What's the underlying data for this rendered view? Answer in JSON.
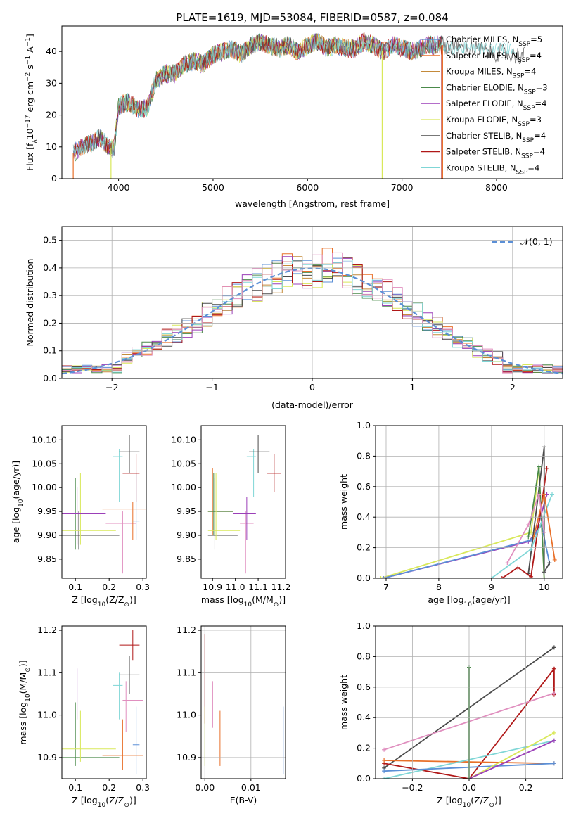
{
  "figure_title": "PLATE=1619, MJD=53084, FIBERID=0587, z=0.084",
  "colors": {
    "c0": "#5b8fd6",
    "c1": "#e8702a",
    "c2": "#c48a3a",
    "c3": "#4a8a4a",
    "c4": "#9b3fb8",
    "c5": "#d9e85a",
    "c6": "#4a4a4a",
    "c7": "#b01818",
    "c8": "#7fd6d6",
    "c9": "#e08fbf",
    "normal": "#5b8fd6"
  },
  "chart_data": [
    {
      "type": "line",
      "title": "PLATE=1619, MJD=53084, FIBERID=0587, z=0.084",
      "xlabel": "wavelength [Angstrom, rest frame]",
      "ylabel": "Flux [f",
      "ylabel_sub": "λ",
      "ylabel_rest": "10",
      "ylabel_exp": "−17",
      "ylabel_tail": " erg cm",
      "ylabel_exp2": "−2",
      "ylabel_tail2": " s",
      "ylabel_exp3": "−1",
      "ylabel_tail3": " A",
      "ylabel_exp4": "−1",
      "ylabel_end": "]",
      "xlim": [
        3400,
        8700
      ],
      "ylim": [
        0,
        48
      ],
      "xticks": [
        4000,
        5000,
        6000,
        7000,
        8000
      ],
      "yticks": [
        0,
        10,
        20,
        30,
        40
      ],
      "legend_position": "top-right",
      "spectrum_anchor": {
        "wavelength": [
          3520,
          3600,
          3700,
          3800,
          3900,
          3950,
          4000,
          4100,
          4200,
          4300,
          4400,
          4500,
          4600,
          4700,
          4800,
          4900,
          5000,
          5100,
          5200,
          5300,
          5400,
          5500,
          5600,
          5700,
          5800,
          5900,
          6000,
          6100,
          6200,
          6300,
          6400,
          6500,
          6600,
          6700,
          6800,
          6900,
          7000,
          7100,
          7200,
          7300,
          7400
        ],
        "flux": [
          8,
          10,
          11,
          13,
          10,
          9,
          23,
          24,
          22,
          22,
          31,
          33,
          33,
          36,
          37,
          36,
          39,
          40,
          41,
          39,
          42,
          43,
          42,
          41,
          42,
          40,
          42,
          43,
          41,
          42,
          41,
          41,
          43,
          42,
          40,
          42,
          41,
          40,
          41,
          42,
          42
        ]
      },
      "series": [
        {
          "name": "Chabrier MILES, N",
          "sub": "SSP",
          "tail": "=5",
          "color": "c0"
        },
        {
          "name": "Salpeter MILES, N",
          "sub": "SSP",
          "tail": "=4",
          "color": "c1"
        },
        {
          "name": "Kroupa MILES, N",
          "sub": "SSP",
          "tail": "=4",
          "color": "c2"
        },
        {
          "name": "Chabrier ELODIE, N",
          "sub": "SSP",
          "tail": "=3",
          "color": "c3"
        },
        {
          "name": "Salpeter ELODIE, N",
          "sub": "SSP",
          "tail": "=4",
          "color": "c4"
        },
        {
          "name": "Kroupa ELODIE, N",
          "sub": "SSP",
          "tail": "=3",
          "color": "c5"
        },
        {
          "name": "Chabrier STELIB, N",
          "sub": "SSP",
          "tail": "=4",
          "color": "c6"
        },
        {
          "name": "Salpeter STELIB, N",
          "sub": "SSP",
          "tail": "=4",
          "color": "c7"
        },
        {
          "name": "Kroupa STELIB, N",
          "sub": "SSP",
          "tail": "=4",
          "color": "c8"
        }
      ]
    },
    {
      "type": "line",
      "xlabel": "(data-model)/error",
      "ylabel": "Normed distribution",
      "xlim": [
        -2.5,
        2.5
      ],
      "ylim": [
        0,
        0.55
      ],
      "xticks": [
        -2,
        -1,
        0,
        1,
        2
      ],
      "yticks": [
        0.0,
        0.1,
        0.2,
        0.3,
        0.4,
        0.5
      ],
      "grid": true,
      "legend_position": "top-right",
      "legend_label": "𝒩(0, 1)",
      "histogram_bin_width": 0.1
    },
    {
      "type": "scatter",
      "xlabel": "Z [log",
      "xlabel_sub": "10",
      "xlabel_tail": "(Z/Z",
      "xlabel_sub2": "⊙",
      "xlabel_end": ")]",
      "ylabel": "age  [log",
      "ylabel_sub": "10",
      "ylabel_tail": "(age/yr)]",
      "xlim": [
        0.06,
        0.31
      ],
      "ylim": [
        9.81,
        10.13
      ],
      "xticks": [
        "0.1",
        "0.2",
        "0.3"
      ],
      "yticks": [
        "9.85",
        "9.90",
        "9.95",
        "10.00",
        "10.05",
        "10.10"
      ],
      "points": [
        {
          "x": 0.1,
          "y": 9.9,
          "xerr": [
            0.07,
            0.18
          ],
          "yerr": [
            9.87,
            10.02
          ],
          "color": "c3"
        },
        {
          "x": 0.11,
          "y": 9.9,
          "xerr": [
            0.06,
            0.23
          ],
          "yerr": [
            9.87,
            9.95
          ],
          "color": "c6"
        },
        {
          "x": 0.115,
          "y": 9.91,
          "xerr": [
            0.06,
            0.22
          ],
          "yerr": [
            9.88,
            10.03
          ],
          "color": "c5"
        },
        {
          "x": 0.105,
          "y": 9.945,
          "xerr": [
            0.06,
            0.19
          ],
          "yerr": [
            9.88,
            10.0
          ],
          "color": "c4"
        },
        {
          "x": 0.24,
          "y": 9.925,
          "xerr": [
            0.19,
            0.28
          ],
          "yerr": [
            9.82,
            9.95
          ],
          "color": "c9"
        },
        {
          "x": 0.27,
          "y": 9.955,
          "xerr": [
            0.18,
            0.31
          ],
          "yerr": [
            9.89,
            9.97
          ],
          "color": "c1"
        },
        {
          "x": 0.28,
          "y": 9.93,
          "xerr": [
            0.27,
            0.29
          ],
          "yerr": [
            9.89,
            10.03
          ],
          "color": "c0"
        },
        {
          "x": 0.28,
          "y": 10.03,
          "xerr": [
            0.24,
            0.29
          ],
          "yerr": [
            9.97,
            10.07
          ],
          "color": "c7"
        },
        {
          "x": 0.23,
          "y": 10.065,
          "xerr": [
            0.21,
            0.24
          ],
          "yerr": [
            9.97,
            10.08
          ],
          "color": "c8"
        },
        {
          "x": 0.26,
          "y": 10.075,
          "xerr": [
            0.23,
            0.29
          ],
          "yerr": [
            10.03,
            10.11
          ],
          "color": "c6"
        }
      ]
    },
    {
      "type": "scatter",
      "xlabel": "mass [log",
      "xlabel_sub": "10",
      "xlabel_tail": "(M/M",
      "xlabel_sub2": "⊙",
      "xlabel_end": ")]",
      "xlim": [
        10.85,
        11.22
      ],
      "ylim": [
        9.81,
        10.13
      ],
      "xticks": [
        "10.9",
        "11.0",
        "11.1",
        "11.2"
      ],
      "yticks": [
        "9.85",
        "9.90",
        "9.95",
        "10.00",
        "10.05",
        "10.10"
      ],
      "points": [
        {
          "x": 10.9,
          "y": 9.95,
          "xerr": [
            10.88,
            10.99
          ],
          "yerr": [
            9.9,
            10.04
          ],
          "color": "c1"
        },
        {
          "x": 10.905,
          "y": 9.95,
          "xerr": [
            10.88,
            10.99
          ],
          "yerr": [
            9.9,
            10.03
          ],
          "color": "c3"
        },
        {
          "x": 10.91,
          "y": 9.9,
          "xerr": [
            10.88,
            11.01
          ],
          "yerr": [
            9.87,
            10.02
          ],
          "color": "c6"
        },
        {
          "x": 10.915,
          "y": 9.91,
          "xerr": [
            10.88,
            11.02
          ],
          "yerr": [
            9.89,
            10.03
          ],
          "color": "c5"
        },
        {
          "x": 11.045,
          "y": 9.925,
          "xerr": [
            11.02,
            11.08
          ],
          "yerr": [
            9.82,
            9.95
          ],
          "color": "c9"
        },
        {
          "x": 11.05,
          "y": 9.945,
          "xerr": [
            10.99,
            11.09
          ],
          "yerr": [
            9.89,
            9.98
          ],
          "color": "c4"
        },
        {
          "x": 11.08,
          "y": 10.065,
          "xerr": [
            11.05,
            11.09
          ],
          "yerr": [
            9.98,
            10.08
          ],
          "color": "c8"
        },
        {
          "x": 11.1,
          "y": 10.075,
          "xerr": [
            11.06,
            11.15
          ],
          "yerr": [
            10.03,
            10.11
          ],
          "color": "c6"
        },
        {
          "x": 11.17,
          "y": 10.03,
          "xerr": [
            11.14,
            11.2
          ],
          "yerr": [
            9.99,
            10.07
          ],
          "color": "c7"
        }
      ]
    },
    {
      "type": "line",
      "xlabel": "age  [log",
      "xlabel_sub": "10",
      "xlabel_tail": "(age/yr)]",
      "ylabel": "mass weight",
      "xlim": [
        6.8,
        10.35
      ],
      "ylim": [
        0,
        1.0
      ],
      "xticks": [
        "7",
        "8",
        "9",
        "10"
      ],
      "yticks": [
        "0.0",
        "0.2",
        "0.4",
        "0.6",
        "0.8",
        "1.0"
      ],
      "grid": true,
      "series": [
        {
          "color": "c5",
          "x": [
            6.9,
            9.75,
            9.9,
            10.0
          ],
          "y": [
            0.0,
            0.3,
            0.72,
            0.0
          ]
        },
        {
          "color": "c4",
          "x": [
            6.95,
            9.7,
            9.85,
            10.05
          ],
          "y": [
            0.0,
            0.24,
            0.3,
            0.55
          ]
        },
        {
          "color": "c0",
          "x": [
            6.95,
            9.75,
            9.95,
            10.1
          ],
          "y": [
            0.0,
            0.25,
            0.35,
            0.1
          ]
        },
        {
          "color": "c3",
          "x": [
            9.7,
            9.9,
            10.0
          ],
          "y": [
            0.27,
            0.73,
            0.0
          ]
        },
        {
          "color": "c6",
          "x": [
            9.7,
            10.0,
            10.0,
            10.1
          ],
          "y": [
            0.03,
            0.86,
            0.04,
            0.1
          ]
        },
        {
          "color": "c7",
          "x": [
            9.2,
            9.5,
            9.75,
            10.05
          ],
          "y": [
            0.0,
            0.07,
            0.01,
            0.72
          ]
        },
        {
          "color": "c8",
          "x": [
            9.0,
            9.75,
            10.15
          ],
          "y": [
            0.0,
            0.19,
            0.55
          ]
        },
        {
          "color": "c1",
          "x": [
            9.8,
            10.0,
            10.2
          ],
          "y": [
            0.27,
            0.55,
            0.12
          ]
        },
        {
          "color": "c9",
          "x": [
            9.3,
            9.7,
            9.9,
            10.0
          ],
          "y": [
            0.1,
            0.35,
            0.55,
            0.3
          ]
        }
      ]
    },
    {
      "type": "scatter",
      "xlabel": "Z [log",
      "xlabel_sub": "10",
      "xlabel_tail": "(Z/Z",
      "xlabel_sub2": "⊙",
      "xlabel_end": ")]",
      "ylabel": "mass [log",
      "ylabel_sub": "10",
      "ylabel_tail": "(M/M",
      "ylabel_sub2": "⊙",
      "ylabel_end": ")]",
      "xlim": [
        0.06,
        0.31
      ],
      "ylim": [
        10.85,
        11.21
      ],
      "xticks": [
        "0.1",
        "0.2",
        "0.3"
      ],
      "yticks": [
        "10.9",
        "11.0",
        "11.1",
        "11.2"
      ],
      "points": [
        {
          "x": 0.1,
          "y": 10.9,
          "xerr": [
            0.06,
            0.23
          ],
          "yerr": [
            10.88,
            11.03
          ],
          "color": "c3"
        },
        {
          "x": 0.115,
          "y": 10.92,
          "xerr": [
            0.06,
            0.22
          ],
          "yerr": [
            10.89,
            11.01
          ],
          "color": "c5"
        },
        {
          "x": 0.105,
          "y": 11.045,
          "xerr": [
            0.06,
            0.19
          ],
          "yerr": [
            10.99,
            11.11
          ],
          "color": "c4"
        },
        {
          "x": 0.24,
          "y": 10.905,
          "xerr": [
            0.18,
            0.3
          ],
          "yerr": [
            10.87,
            10.99
          ],
          "color": "c1"
        },
        {
          "x": 0.25,
          "y": 11.035,
          "xerr": [
            0.24,
            0.3
          ],
          "yerr": [
            10.96,
            11.08
          ],
          "color": "c9"
        },
        {
          "x": 0.28,
          "y": 10.93,
          "xerr": [
            0.27,
            0.29
          ],
          "yerr": [
            10.86,
            11.02
          ],
          "color": "c0"
        },
        {
          "x": 0.23,
          "y": 11.07,
          "xerr": [
            0.21,
            0.24
          ],
          "yerr": [
            10.99,
            11.1
          ],
          "color": "c8"
        },
        {
          "x": 0.26,
          "y": 11.095,
          "xerr": [
            0.23,
            0.29
          ],
          "yerr": [
            11.05,
            11.14
          ],
          "color": "c6"
        },
        {
          "x": 0.27,
          "y": 11.165,
          "xerr": [
            0.23,
            0.29
          ],
          "yerr": [
            11.13,
            11.2
          ],
          "color": "c7"
        }
      ]
    },
    {
      "type": "scatter",
      "xlabel": "E(B-V)",
      "xlim": [
        -0.0008,
        0.0175
      ],
      "ylim": [
        10.85,
        11.21
      ],
      "xticks": [
        "0.00",
        "0.01"
      ],
      "yticks": [
        "10.9",
        "11.0",
        "11.1",
        "11.2"
      ],
      "grid": true,
      "points": [
        {
          "x": 0.0,
          "y": 11.05,
          "yerr": [
            10.98,
            11.19
          ],
          "color": "c7"
        },
        {
          "x": 0.0,
          "y": 11.0,
          "yerr": [
            10.88,
            11.02
          ],
          "color": "c5"
        },
        {
          "x": 0.0033,
          "y": 10.93,
          "yerr": [
            10.88,
            11.01
          ],
          "color": "c1"
        },
        {
          "x": 0.0017,
          "y": 11.04,
          "yerr": [
            10.97,
            11.08
          ],
          "color": "c9"
        },
        {
          "x": 0.017,
          "y": 10.95,
          "yerr": [
            10.86,
            11.02
          ],
          "color": "c0"
        }
      ]
    },
    {
      "type": "line",
      "xlabel": "Z [log",
      "xlabel_sub": "10",
      "xlabel_tail": "(Z/Z",
      "xlabel_sub2": "⊙",
      "xlabel_end": ")]",
      "ylabel": "mass weight",
      "xlim": [
        -0.33,
        0.33
      ],
      "ylim": [
        0,
        1.0
      ],
      "xticks": [
        "−0.2",
        "0.0",
        "0.2"
      ],
      "yticks": [
        "0.0",
        "0.2",
        "0.4",
        "0.6",
        "0.8",
        "1.0"
      ],
      "grid": true,
      "series": [
        {
          "color": "c6",
          "x": [
            -0.3,
            0.3
          ],
          "y": [
            0.07,
            0.86
          ]
        },
        {
          "color": "c7",
          "x": [
            -0.3,
            0.0,
            0.3,
            0.3
          ],
          "y": [
            0.1,
            0.0,
            0.72,
            0.55
          ]
        },
        {
          "color": "c9",
          "x": [
            -0.3,
            0.3
          ],
          "y": [
            0.19,
            0.56
          ]
        },
        {
          "color": "c1",
          "x": [
            -0.3,
            0.3
          ],
          "y": [
            0.12,
            0.1
          ]
        },
        {
          "color": "c8",
          "x": [
            -0.3,
            0.3
          ],
          "y": [
            0.0,
            0.25
          ]
        },
        {
          "color": "c0",
          "x": [
            -0.3,
            0.3
          ],
          "y": [
            0.05,
            0.1
          ]
        },
        {
          "color": "c5",
          "x": [
            0.0,
            0.3
          ],
          "y": [
            0.0,
            0.3
          ]
        },
        {
          "color": "c4",
          "x": [
            0.0,
            0.3
          ],
          "y": [
            0.0,
            0.25
          ]
        },
        {
          "color": "c3",
          "x": [
            0.0,
            0.0
          ],
          "y": [
            0.0,
            0.73
          ]
        }
      ]
    }
  ]
}
